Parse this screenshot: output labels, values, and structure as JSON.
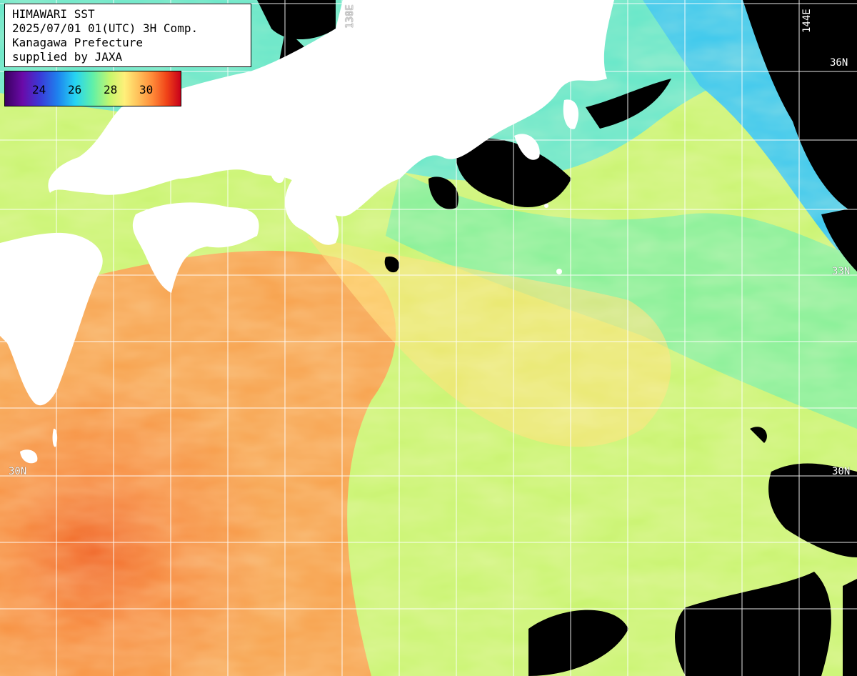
{
  "header": {
    "line1": "HIMAWARI SST",
    "line2": "2025/07/01 01(UTC) 3H Comp.",
    "line3": "Kanagawa Prefecture",
    "line4": "supplied by JAXA"
  },
  "colorbar": {
    "ticks": [
      "24",
      "26",
      "28",
      "30"
    ]
  },
  "grid_labels": {
    "lon_138": "138E",
    "lon_144": "144E",
    "lat_36_right": "36N",
    "lat_33_right": "33N",
    "lat_30_left": "30N",
    "lat_30_right": "30N"
  },
  "colors": {
    "land": "#ffffff",
    "cloud": "#000000",
    "grid": "#ffffff"
  }
}
